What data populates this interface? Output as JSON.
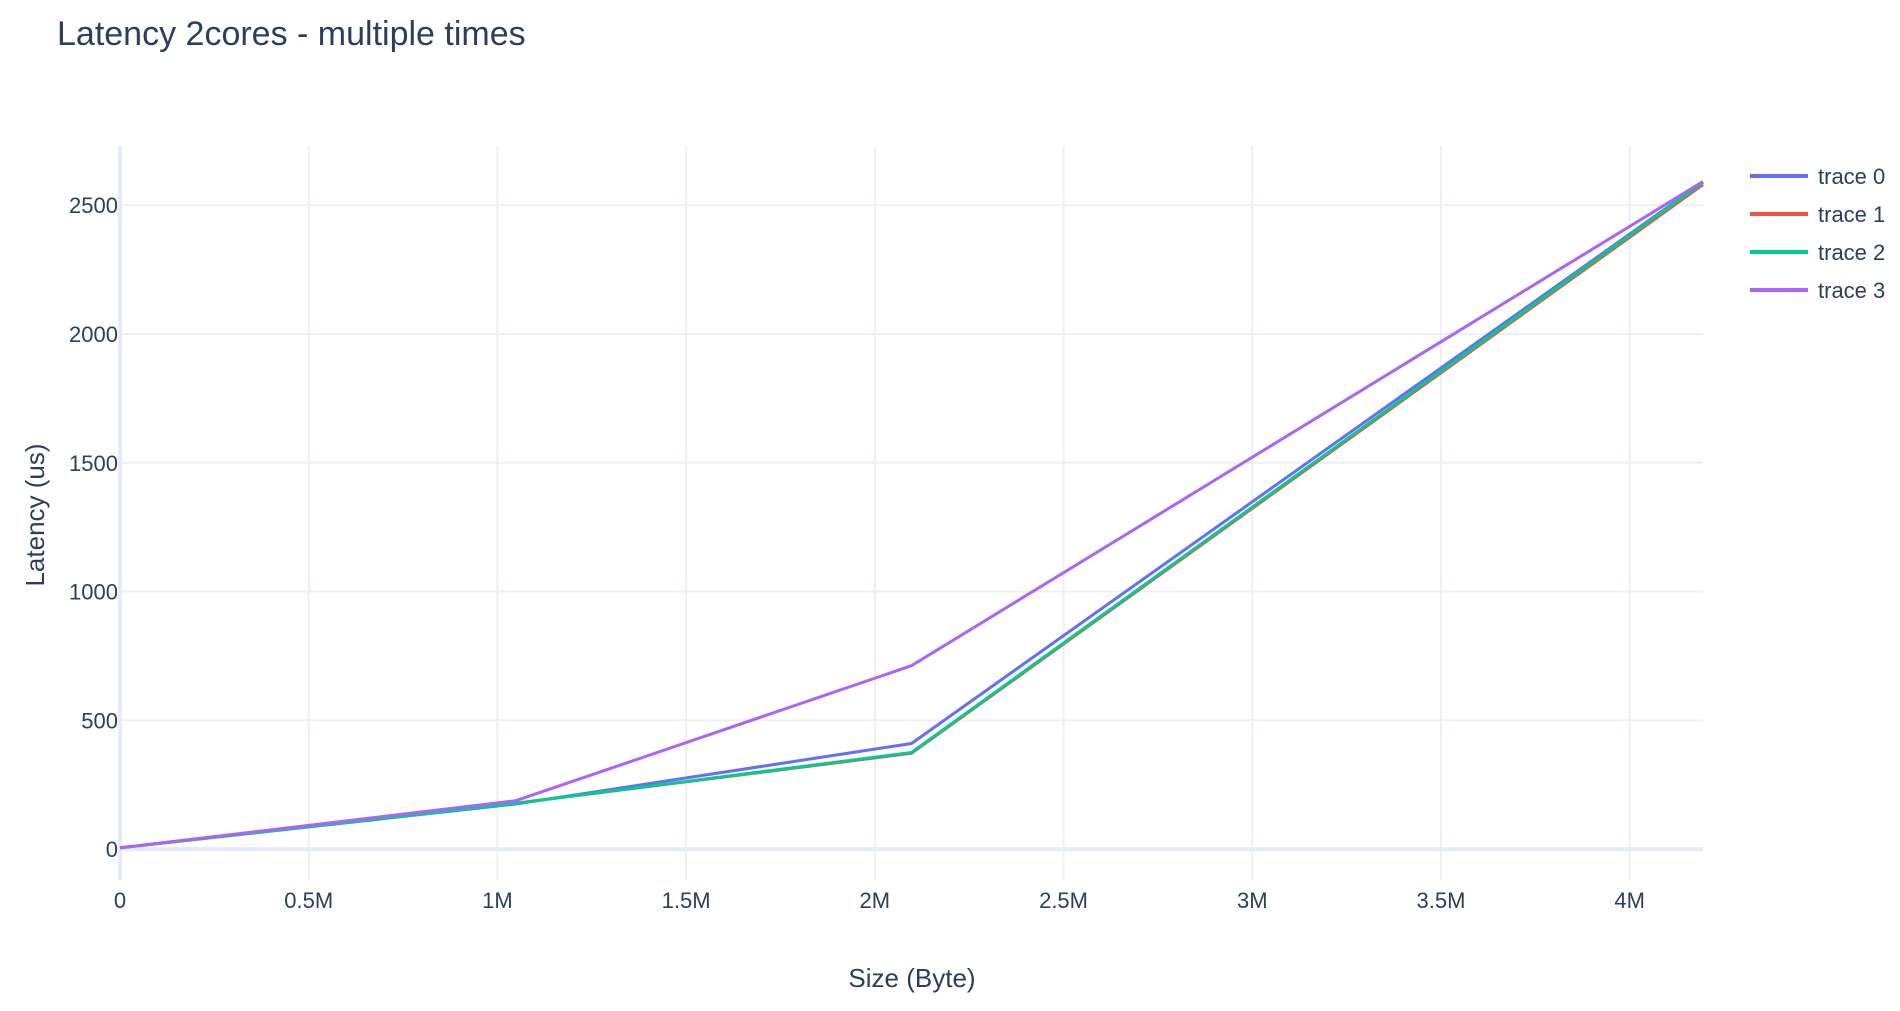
{
  "chart_data": {
    "type": "line",
    "title": "Latency 2cores - multiple times",
    "xlabel": "Size (Byte)",
    "ylabel": "Latency (us)",
    "xlim": [
      0,
      4194304
    ],
    "ylim": [
      -120,
      2730
    ],
    "x_ticks": [
      {
        "value": 0,
        "label": "0"
      },
      {
        "value": 500000,
        "label": "0.5M"
      },
      {
        "value": 1000000,
        "label": "1M"
      },
      {
        "value": 1500000,
        "label": "1.5M"
      },
      {
        "value": 2000000,
        "label": "2M"
      },
      {
        "value": 2500000,
        "label": "2.5M"
      },
      {
        "value": 3000000,
        "label": "3M"
      },
      {
        "value": 3500000,
        "label": "3.5M"
      },
      {
        "value": 4000000,
        "label": "4M"
      }
    ],
    "y_ticks": [
      {
        "value": 0,
        "label": "0"
      },
      {
        "value": 500,
        "label": "500"
      },
      {
        "value": 1000,
        "label": "1000"
      },
      {
        "value": 1500,
        "label": "1500"
      },
      {
        "value": 2000,
        "label": "2000"
      },
      {
        "value": 2500,
        "label": "2500"
      }
    ],
    "grid": true,
    "legend_position": "top-right",
    "x": [
      0,
      1048576,
      2097152,
      4194304
    ],
    "series": [
      {
        "name": "trace 0",
        "color": "#636efa",
        "values": [
          5,
          175,
          410,
          2590
        ]
      },
      {
        "name": "trace 1",
        "color": "#ef553b",
        "values": [
          5,
          178,
          372,
          2580
        ]
      },
      {
        "name": "trace 2",
        "color": "#00cc96",
        "values": [
          5,
          178,
          375,
          2588
        ]
      },
      {
        "name": "trace 3",
        "color": "#ab63fa",
        "values": [
          5,
          188,
          712,
          2592
        ]
      }
    ]
  }
}
